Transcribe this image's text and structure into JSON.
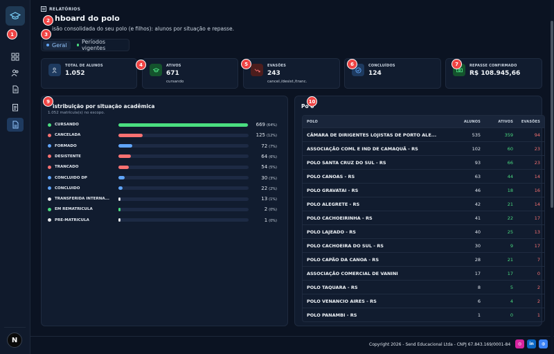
{
  "header": {
    "eyebrow": "RELATÓRIOS",
    "title_visible": "hboard do polo",
    "subtitle_visible": "isão consolidada do seu polo (e filhos): alunos por situação e repasse."
  },
  "tabs": [
    {
      "label": "Geral",
      "active": true,
      "dot_color": "#60a5fa"
    },
    {
      "label": "Períodos vigentes",
      "active": false,
      "dot_color": "#4ade80"
    }
  ],
  "sidebar": {
    "items": [
      {
        "icon": "grid-icon"
      },
      {
        "icon": "users-icon"
      },
      {
        "icon": "document-icon"
      },
      {
        "icon": "clipboard-icon"
      },
      {
        "icon": "report-icon",
        "active": true
      }
    ],
    "avatar_label": "N"
  },
  "kpis": [
    {
      "label": "TOTAL DE ALUNOS",
      "value": "1.052",
      "sub": "",
      "icon_color": "#1e3a5f"
    },
    {
      "label": "ATIVOS",
      "value": "671",
      "sub": "cursando",
      "icon_color": "#14532d"
    },
    {
      "label": "EVASÕES",
      "value": "243",
      "sub": "cancel./desist./tranc.",
      "icon_color": "#4c1d1d"
    },
    {
      "label": "CONCLUÍDOS",
      "value": "124",
      "sub": "",
      "icon_color": "#1e3a5f"
    },
    {
      "label": "REPASSE CONFIRMADO",
      "value": "R$ 108.945,66",
      "sub": "",
      "icon_color": "#14532d"
    }
  ],
  "distribution": {
    "title_visible": "istribuição por situação acadêmica",
    "subtitle": "1.052 matrícula(s) no escopo.",
    "rows": [
      {
        "label": "CURSANDO",
        "value": 669,
        "pct": "(64%)",
        "fraction": 0.64,
        "color": "#4ade80"
      },
      {
        "label": "CANCELADA",
        "value": 125,
        "pct": "(12%)",
        "fraction": 0.12,
        "color": "#f87171"
      },
      {
        "label": "FORMADO",
        "value": 72,
        "pct": "(7%)",
        "fraction": 0.07,
        "color": "#60a5fa"
      },
      {
        "label": "DESISTENTE",
        "value": 64,
        "pct": "(6%)",
        "fraction": 0.06,
        "color": "#f87171"
      },
      {
        "label": "TRANCADO",
        "value": 54,
        "pct": "(5%)",
        "fraction": 0.05,
        "color": "#f87171"
      },
      {
        "label": "CONCLUÍDO DP",
        "value": 30,
        "pct": "(3%)",
        "fraction": 0.03,
        "color": "#60a5fa"
      },
      {
        "label": "CONCLUÍDO",
        "value": 22,
        "pct": "(2%)",
        "fraction": 0.02,
        "color": "#60a5fa"
      },
      {
        "label": "TRANSFERIDA INTERNA...",
        "value": 13,
        "pct": "(1%)",
        "fraction": 0.01,
        "color": "#e5e7eb"
      },
      {
        "label": "EM REMATRÍCULA",
        "value": 2,
        "pct": "(0%)",
        "fraction": 0.005,
        "color": "#4ade80"
      },
      {
        "label": "PRÉ-MATRÍCULA",
        "value": 1,
        "pct": "(0%)",
        "fraction": 0.004,
        "color": "#e5e7eb"
      }
    ]
  },
  "polo_table": {
    "title_visible": "Po o",
    "columns": [
      "POLO",
      "ALUNOS",
      "ATIVOS",
      "EVASÕES"
    ],
    "rows": [
      [
        "CÂMARA DE DIRIGENTES LOJISTAS DE PORTO ALE...",
        "535",
        "359",
        "94"
      ],
      [
        "ASSOCIAÇÃO COML E IND DE CAMAQUÃ - RS",
        "102",
        "60",
        "23"
      ],
      [
        "POLO SANTA CRUZ DO SUL - RS",
        "93",
        "66",
        "23"
      ],
      [
        "POLO CANOAS - RS",
        "63",
        "44",
        "14"
      ],
      [
        "POLO GRAVATAI - RS",
        "46",
        "18",
        "16"
      ],
      [
        "POLO ALEGRETE - RS",
        "42",
        "21",
        "14"
      ],
      [
        "POLO CACHOEIRINHA - RS",
        "41",
        "22",
        "17"
      ],
      [
        "POLO LAJEADO - RS",
        "40",
        "25",
        "13"
      ],
      [
        "POLO CACHOEIRA DO SUL - RS",
        "30",
        "9",
        "17"
      ],
      [
        "POLO CAPÃO DA CANOA - RS",
        "28",
        "21",
        "7"
      ],
      [
        "ASSOCIAÇÃO COMERCIAL DE VANINI",
        "17",
        "17",
        "0"
      ],
      [
        "POLO TAQUARA - RS",
        "8",
        "5",
        "2"
      ],
      [
        "POLO VENANCIO AIRES - RS",
        "6",
        "4",
        "2"
      ],
      [
        "POLO PANAMBI - RS",
        "1",
        "0",
        "1"
      ]
    ]
  },
  "markers": [
    "1",
    "2",
    "3",
    "4",
    "5",
    "6",
    "7",
    "9",
    "10"
  ],
  "footer": {
    "copyright": "Copyright 2026 - Send Educacional Ltda - CNPJ 67.843.169/0001-84",
    "social": [
      {
        "icon": "instagram-icon",
        "glyph": "◎",
        "color": "#d6249f"
      },
      {
        "icon": "linkedin-icon",
        "glyph": "in",
        "color": "#0a66c2"
      },
      {
        "icon": "globe-icon",
        "glyph": "◍",
        "color": "#3b82f6"
      }
    ]
  }
}
